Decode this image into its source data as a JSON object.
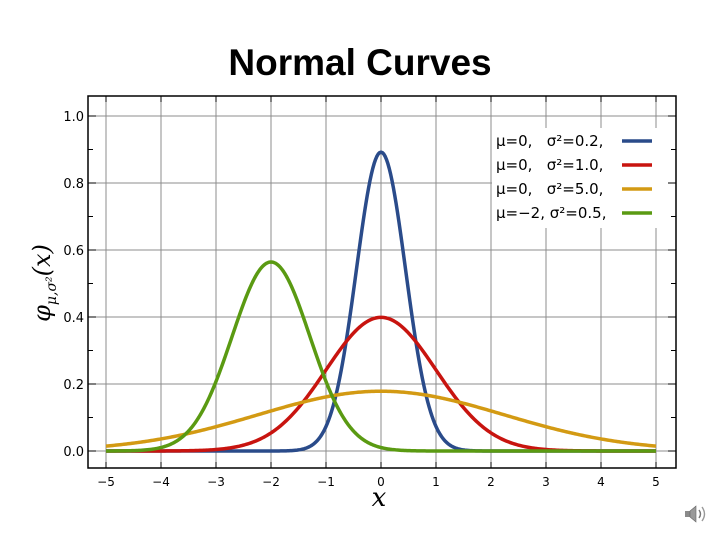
{
  "slide": {
    "title": "Normal Curves"
  },
  "icons": {
    "speaker": "speaker-icon"
  },
  "chart_data": {
    "type": "line",
    "xlabel": "x",
    "ylabel": "φ_{μ,σ²}(x)",
    "xlim": [
      -5,
      5
    ],
    "ylim": [
      0,
      1.0
    ],
    "x_ticks": [
      -5,
      -4,
      -3,
      -2,
      -1,
      0,
      1,
      2,
      3,
      4,
      5
    ],
    "x_tick_labels": [
      "−5",
      "−4",
      "−3",
      "−2",
      "−1",
      "0",
      "1",
      "2",
      "3",
      "4",
      "5"
    ],
    "y_ticks": [
      0.0,
      0.2,
      0.4,
      0.6,
      0.8,
      1.0
    ],
    "y_tick_labels": [
      "0.0",
      "0.2",
      "0.4",
      "0.6",
      "0.8",
      "1.0"
    ],
    "grid": true,
    "legend_position": "top-right",
    "series": [
      {
        "name": "μ=0,   σ²=0.2,",
        "mu": 0,
        "variance": 0.2,
        "color": "#2a4b8a"
      },
      {
        "name": "μ=0,   σ²=1.0,",
        "mu": 0,
        "variance": 1.0,
        "color": "#c8140f"
      },
      {
        "name": "μ=0,   σ²=5.0,",
        "mu": 0,
        "variance": 5.0,
        "color": "#d39a13"
      },
      {
        "name": "μ=−2, σ²=0.5,",
        "mu": -2,
        "variance": 0.5,
        "color": "#5a9a12"
      }
    ]
  }
}
